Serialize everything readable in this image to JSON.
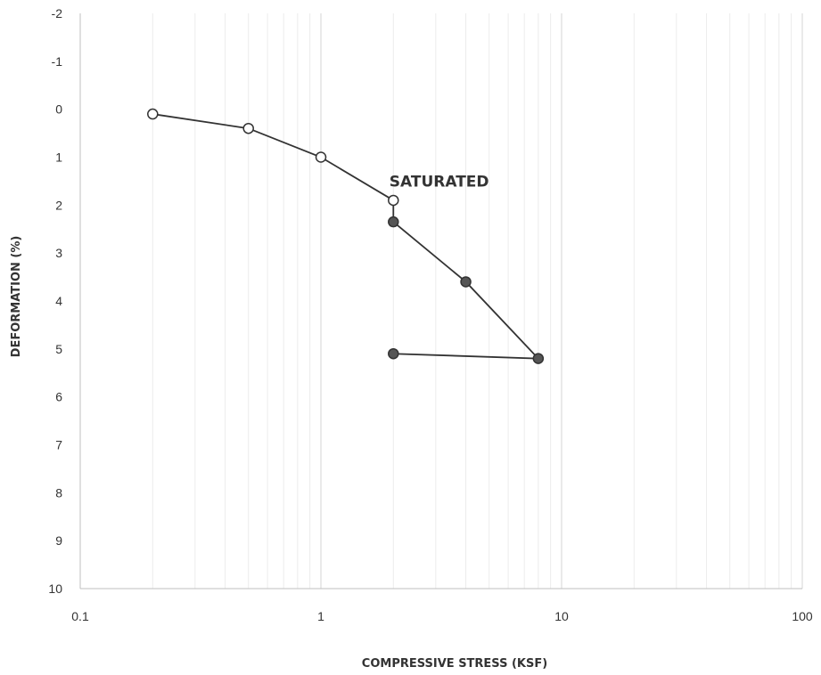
{
  "chart_data": {
    "type": "scatter",
    "xlabel": "COMPRESSIVE STRESS (KSF)",
    "ylabel": "DEFORMATION (%)",
    "x_scale": "log",
    "xlim": [
      0.1,
      100
    ],
    "ylim": [
      -2,
      10
    ],
    "y_inverted": true,
    "x_ticks": [
      "0.1",
      "1",
      "10",
      "100"
    ],
    "y_ticks": [
      "-2",
      "-1",
      "0",
      "1",
      "2",
      "3",
      "4",
      "5",
      "6",
      "7",
      "8",
      "9",
      "10"
    ],
    "grid": true,
    "series": [
      {
        "marker": "open-circle",
        "color": "#333333",
        "x": [
          0.2,
          0.5,
          1,
          2
        ],
        "y": [
          0.1,
          0.4,
          1.0,
          1.9
        ]
      },
      {
        "marker": "filled-circle",
        "color": "#555555",
        "x": [
          2,
          4,
          8,
          2
        ],
        "y": [
          2.35,
          3.6,
          5.2,
          5.1
        ]
      }
    ],
    "connector": {
      "from": [
        2,
        1.9
      ],
      "to": [
        2,
        2.35
      ]
    },
    "annotations": [
      {
        "text": "SATURATED",
        "x": 3.1,
        "y": 1.5
      }
    ]
  }
}
